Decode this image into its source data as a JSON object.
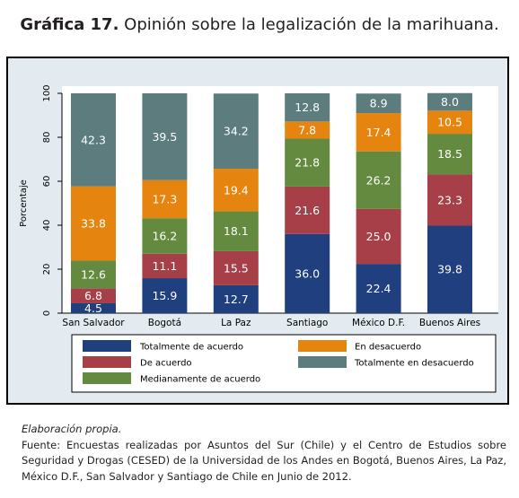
{
  "figure": {
    "number": "Gráfica 17.",
    "title": "Opinión sobre la legalización de la marihuana."
  },
  "chart_data": {
    "type": "bar",
    "stacked": true,
    "categories": [
      "San Salvador",
      "Bogotá",
      "La Paz",
      "Santiago",
      "México D.F.",
      "Buenos Aires"
    ],
    "ylabel": "Porcentaje",
    "xlabel": "",
    "ylim": [
      0,
      100
    ],
    "yticks": [
      0,
      20,
      40,
      60,
      80,
      100
    ],
    "legend_position": "bottom",
    "series": [
      {
        "name": "Totalmente de acuerdo",
        "color": "#203f7e",
        "values": [
          4.5,
          15.9,
          12.7,
          36.0,
          22.4,
          39.8
        ]
      },
      {
        "name": "De acuerdo",
        "color": "#a63f48",
        "values": [
          6.8,
          11.1,
          15.5,
          21.6,
          25.0,
          23.3
        ]
      },
      {
        "name": "Medianamente de acuerdo",
        "color": "#648a3f",
        "values": [
          12.6,
          16.2,
          18.1,
          21.8,
          26.2,
          18.5
        ]
      },
      {
        "name": "En desacuerdo",
        "color": "#e5850f",
        "values": [
          33.8,
          17.3,
          19.4,
          7.8,
          17.4,
          10.5
        ]
      },
      {
        "name": "Totalmente en desacuerdo",
        "color": "#5d7c7e",
        "values": [
          42.3,
          39.5,
          34.2,
          12.8,
          8.9,
          8.0
        ]
      }
    ],
    "value_labels": [
      [
        "4.5",
        "15.9",
        "12.7",
        "36.0",
        "22.4",
        "39.8"
      ],
      [
        "6.8",
        "11.1",
        "15.5",
        "21.6",
        "25.0",
        "23.3"
      ],
      [
        "12.6",
        "16.2",
        "18.1",
        "21.8",
        "26.2",
        "18.5"
      ],
      [
        "33.8",
        "17.3",
        "19.4",
        "7.8",
        "17.4",
        "10.5"
      ],
      [
        "42.3",
        "39.5",
        "34.2",
        "12.8",
        "8.9",
        "8.0"
      ]
    ],
    "legend_order": [
      0,
      3,
      1,
      4,
      2
    ]
  },
  "footer": {
    "elaboration": "Elaboración propia.",
    "source": "Fuente: Encuestas realizadas por Asuntos del Sur (Chile) y el Centro de Estudios sobre Seguridad y Drogas (CESED) de la Universidad de los Andes en Bogotá, Buenos Aires, La Paz, México D.F., San Salvador y Santiago de Chile en Junio de 2012."
  }
}
